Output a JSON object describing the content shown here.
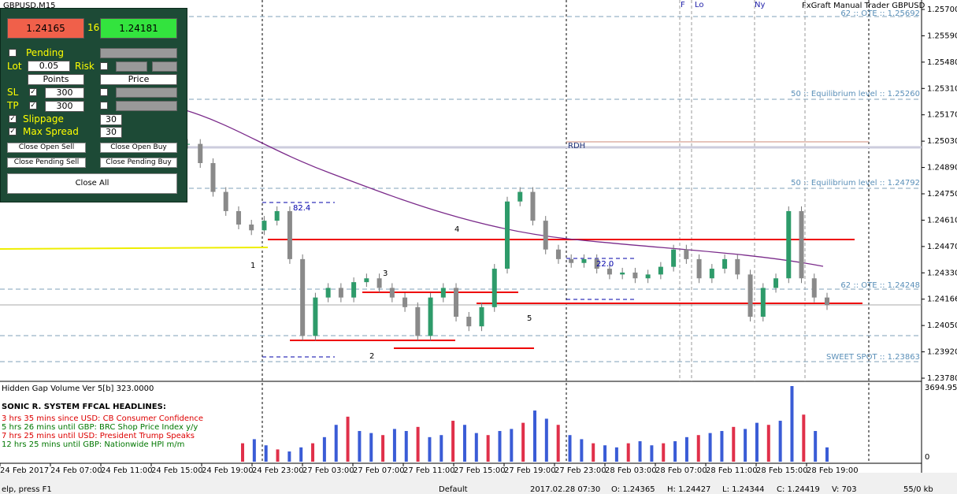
{
  "window": {
    "symbol": "GBPUSD,M15",
    "overlay": "FxGraft Manual Trader GBPUSD"
  },
  "panel": {
    "sell": "1.24165",
    "spread": "16",
    "buy": "1.24181",
    "pending": "Pending",
    "lot_label": "Lot",
    "lot": "0.05",
    "risk": "Risk",
    "points": "Points",
    "price": "Price",
    "sl_label": "SL",
    "sl": "300",
    "tp_label": "TP",
    "tp": "300",
    "slippage_label": "Slippage",
    "slippage": "30",
    "max_spread_label": "Max Spread",
    "max_spread": "30",
    "close_open_sell": "Close  Open Sell",
    "close_open_buy": "Close  Open Buy",
    "close_pending_sell": "Close Pending Sell",
    "close_pending_buy": "Close Pending Buy",
    "close_all": "Close All"
  },
  "chart": {
    "session_labels": [
      "F",
      "Lo",
      "Ny"
    ],
    "levels": [
      "62 :: OTE :: 1.25692",
      "50 :: Equilibrium level :: 1.25260",
      "RDH",
      "50 :: Equilibrium level :: 1.24792",
      "62 :: OTE :: 1.24248",
      "SWEET SPOT :: 1.23863"
    ],
    "fib_labels": [
      "82.4",
      "22.0"
    ],
    "points": [
      "1",
      "2",
      "3",
      "4",
      "5"
    ],
    "price_range": [
      1.2378,
      1.257
    ],
    "prices": [
      1.25,
      1.249,
      1.2475,
      1.2465,
      1.2458,
      1.2455,
      1.246,
      1.2465,
      1.244,
      1.24,
      1.242,
      1.2425,
      1.242,
      1.2428,
      1.243,
      1.2425,
      1.242,
      1.2415,
      1.24,
      1.242,
      1.2425,
      1.241,
      1.2405,
      1.2415,
      1.2435,
      1.247,
      1.2475,
      1.246,
      1.2445,
      1.244,
      1.2438,
      1.244,
      1.2435,
      1.2432,
      1.2433,
      1.243,
      1.2432,
      1.2436,
      1.2445,
      1.244,
      1.243,
      1.2435,
      1.244,
      1.2432,
      1.241,
      1.2425,
      1.243,
      1.2465,
      1.243,
      1.242,
      1.2416
    ],
    "price_ticks": [
      "1.25700",
      "1.25590",
      "1.25480",
      "1.25310",
      "1.25170",
      "1.25030",
      "1.24890",
      "1.24750",
      "1.24610",
      "1.24470",
      "1.24330",
      "1.24166",
      "1.24050",
      "1.23920",
      "1.23780"
    ],
    "time_ticks": [
      "24 Feb 2017",
      "24 Feb 07:00",
      "24 Feb 11:00",
      "24 Feb 15:00",
      "24 Feb 19:00",
      "24 Feb 23:00",
      "27 Feb 03:00",
      "27 Feb 07:00",
      "27 Feb 11:00",
      "27 Feb 15:00",
      "27 Feb 19:00",
      "27 Feb 23:00",
      "28 Feb 03:00",
      "28 Feb 07:00",
      "28 Feb 11:00",
      "28 Feb 15:00",
      "28 Feb 19:00"
    ]
  },
  "indicator": {
    "title": "Hidden Gap Volume Ver 5[b] 323.0000",
    "max_label": "3694.95",
    "zero_label": "0",
    "vol_max": 3694.95,
    "headlines_title": "SONIC R. SYSTEM  FFCAL HEADLINES:",
    "headlines": [
      "3 hrs 35 mins since USD: CB Consumer Confidence",
      "5 hrs 26 mins until GBP: BRC Shop Price Index y/y",
      "7 hrs 25 mins until USD: President Trump Speaks",
      "12 hrs 25 mins until GBP: Nationwide HPI m/m"
    ],
    "volumes": [
      900,
      1100,
      800,
      600,
      500,
      700,
      900,
      1200,
      1800,
      2200,
      1500,
      1400,
      1300,
      1600,
      1500,
      1700,
      1200,
      1300,
      2000,
      1800,
      1400,
      1300,
      1500,
      1600,
      1900,
      2500,
      2100,
      1800,
      1300,
      1100,
      900,
      800,
      700,
      900,
      1000,
      800,
      900,
      1000,
      1200,
      1300,
      1400,
      1500,
      1700,
      1600,
      1900,
      1800,
      2000,
      3694.95,
      2300,
      1500,
      700
    ]
  },
  "status": {
    "help": "elp, press F1",
    "profile": "Default",
    "time": "2017.02.28 07:30",
    "open": "O: 1.24365",
    "high": "H: 1.24427",
    "low": "L: 1.24344",
    "close": "C: 1.24419",
    "volume": "V: 703",
    "traffic": "55/0 kb"
  }
}
